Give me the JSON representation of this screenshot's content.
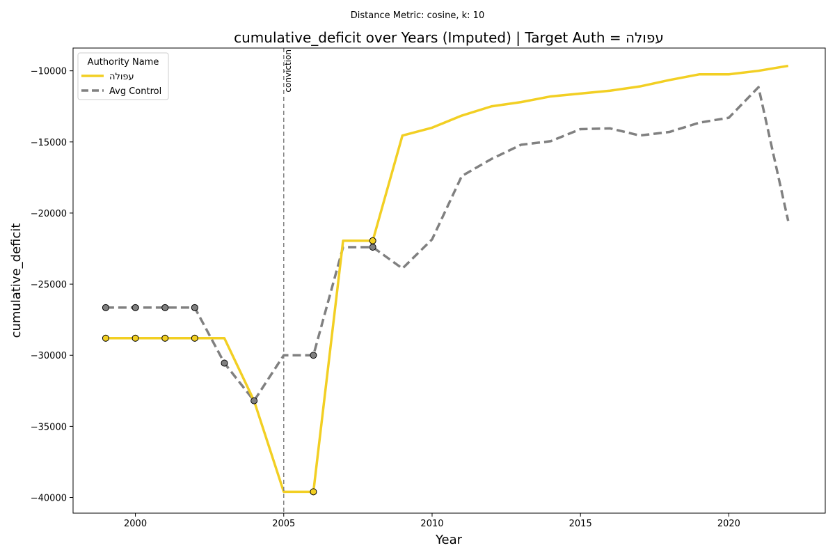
{
  "suptitle": "Distance Metric: cosine, k: 10",
  "colors": {
    "target": "#f2cf23",
    "control": "#808080",
    "vline": "#808080"
  },
  "chart_data": {
    "type": "line",
    "title": "cumulative_deficit over Years (Imputed) | Target Auth = עפולה",
    "xlabel": "Year",
    "ylabel": "cumulative_deficit",
    "xlim": [
      1997.9,
      2023.25
    ],
    "ylim": [
      -41100,
      -8400
    ],
    "xticks": [
      2000,
      2005,
      2010,
      2015,
      2020
    ],
    "yticks": [
      -40000,
      -35000,
      -30000,
      -25000,
      -20000,
      -15000,
      -10000
    ],
    "grid": false,
    "legend": {
      "title": "Authority Name",
      "position": "top-left",
      "entries": [
        "עפולה",
        "Avg Control"
      ]
    },
    "vline": {
      "x": 2005,
      "label": "conviction"
    },
    "x": [
      1999,
      2000,
      2001,
      2002,
      2003,
      2004,
      2005,
      2006,
      2007,
      2008,
      2009,
      2010,
      2011,
      2012,
      2013,
      2014,
      2015,
      2016,
      2017,
      2018,
      2019,
      2020,
      2021,
      2022
    ],
    "series": [
      {
        "name": "עפולה",
        "style": "solid",
        "values": [
          -28800,
          -28800,
          -28800,
          -28800,
          -28800,
          -33200,
          -39600,
          -39600,
          -21950,
          -21950,
          -14550,
          -14000,
          -13150,
          -12500,
          -12200,
          -11800,
          -11600,
          -11400,
          -11100,
          -10650,
          -10250,
          -10250,
          -10000,
          -9650
        ],
        "imputed_marker_years": [
          1999,
          2000,
          2001,
          2002,
          2006,
          2008
        ]
      },
      {
        "name": "Avg Control",
        "style": "dashed",
        "values": [
          -26650,
          -26650,
          -26650,
          -26650,
          -30550,
          -33200,
          -30000,
          -30000,
          -22400,
          -22400,
          -23900,
          -21850,
          -17400,
          -16200,
          -15200,
          -14950,
          -14100,
          -14050,
          -14550,
          -14300,
          -13650,
          -13300,
          -11150,
          -20550
        ],
        "imputed_marker_years": [
          1999,
          2000,
          2001,
          2002,
          2003,
          2004,
          2006,
          2008
        ]
      }
    ]
  }
}
